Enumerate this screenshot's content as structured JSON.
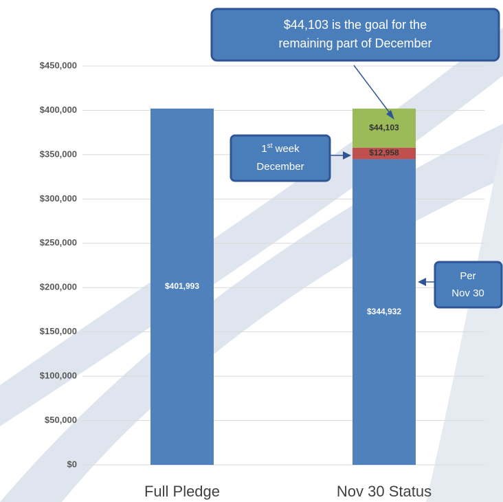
{
  "chart_data": {
    "type": "stacked_bar",
    "categories": [
      "Full Pledge",
      "Nov 30 Status"
    ],
    "series": [
      {
        "color": "#4f81bd",
        "values": [
          401993,
          344932
        ],
        "value_labels": [
          "$401,993",
          "$344,932"
        ]
      },
      {
        "color": "#c0504d",
        "values": [
          null,
          12958
        ],
        "value_labels": [
          null,
          "$12,958"
        ]
      },
      {
        "color": "#9bbb59",
        "values": [
          null,
          44103
        ],
        "value_labels": [
          null,
          "$44,103"
        ]
      }
    ],
    "ylim": [
      0,
      450000
    ],
    "yticks": [
      {
        "value": 0,
        "label": "$0"
      },
      {
        "value": 50000,
        "label": "$50,000"
      },
      {
        "value": 100000,
        "label": "$100,000"
      },
      {
        "value": 150000,
        "label": "$150,000"
      },
      {
        "value": 200000,
        "label": "$200,000"
      },
      {
        "value": 250000,
        "label": "$250,000"
      },
      {
        "value": 300000,
        "label": "$300,000"
      },
      {
        "value": 350000,
        "label": "$350,000"
      },
      {
        "value": 400000,
        "label": "$400,000"
      },
      {
        "value": 450000,
        "label": "$450,000"
      }
    ],
    "grid": true,
    "annotations": [
      {
        "lines": [
          "$44,103 is the goal for the",
          "remaining part of December"
        ]
      },
      {
        "number": "1",
        "suffix": "st",
        "lines": [
          " week",
          "December"
        ]
      },
      {
        "lines": [
          "Per",
          "Nov 30"
        ]
      }
    ]
  }
}
